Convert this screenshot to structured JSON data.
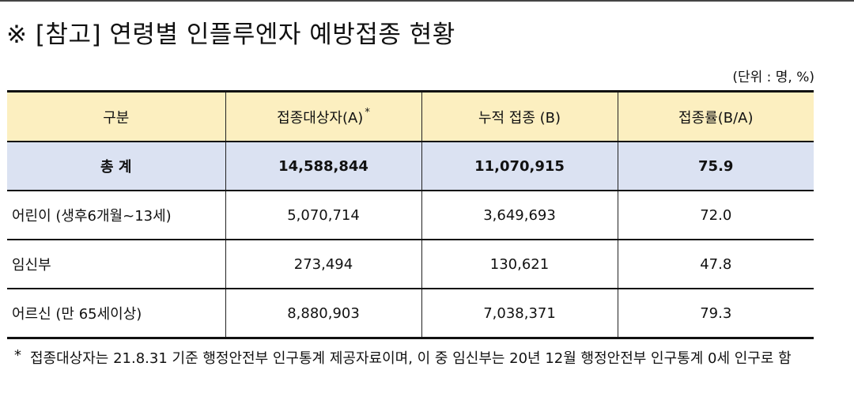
{
  "title": "※ [참고] 연령별 인플루엔자 예방접종 현황",
  "unit_note": "(단위 : 명, %)",
  "table": {
    "headers": [
      "구분",
      "접종대상자(A)",
      "누적 접종 (B)",
      "접종률(B/A)"
    ],
    "header_star": "*",
    "total": {
      "label": "총 계",
      "target": "14,588,844",
      "vaccinated": "11,070,915",
      "rate": "75.9"
    },
    "rows": [
      {
        "label": "어린이 (생후6개월~13세)",
        "target": "5,070,714",
        "vaccinated": "3,649,693",
        "rate": "72.0"
      },
      {
        "label": "임신부",
        "target": "273,494",
        "vaccinated": "130,621",
        "rate": "47.8"
      },
      {
        "label": "어르신 (만 65세이상)",
        "target": "8,880,903",
        "vaccinated": "7,038,371",
        "rate": "79.3"
      }
    ]
  },
  "footnote": {
    "mark": "*",
    "text": "접종대상자는 21.8.31 기준 행정안전부 인구통계 제공자료이며, 이 중 임신부는 20년 12월 행정안전부 인구통계 0세 인구로 함"
  }
}
